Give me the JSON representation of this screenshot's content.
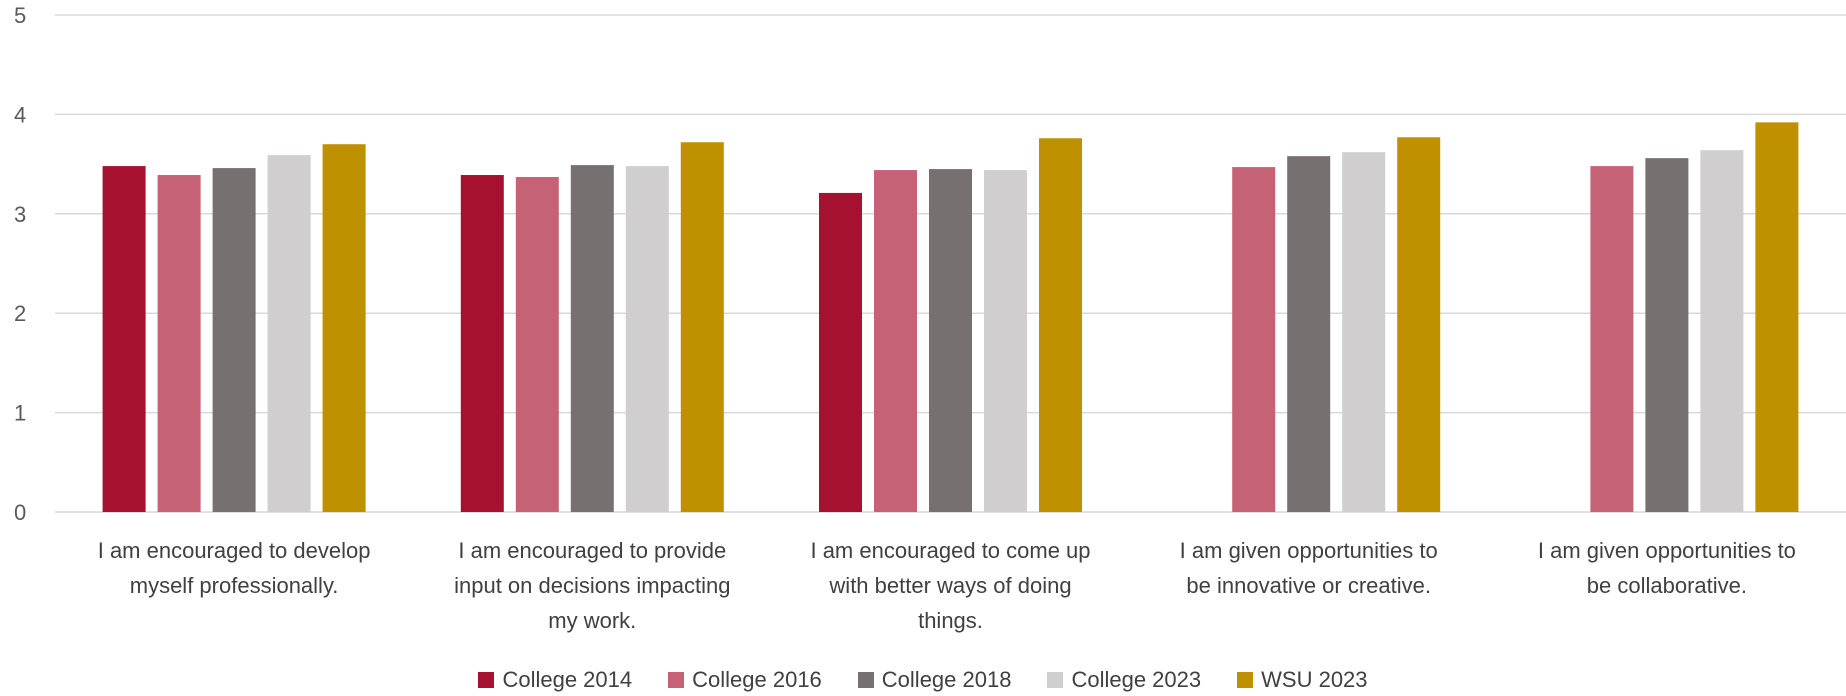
{
  "chart_data": {
    "type": "bar",
    "title": "",
    "xlabel": "",
    "ylabel": "",
    "ylim": [
      0,
      5
    ],
    "yticks": [
      0,
      1,
      2,
      3,
      4,
      5
    ],
    "grid": true,
    "legend_position": "bottom",
    "categories": [
      [
        "I am encouraged to develop",
        "myself professionally."
      ],
      [
        "I am encouraged to provide",
        "input on decisions impacting",
        "my work."
      ],
      [
        "I am encouraged to come up",
        "with better ways of doing",
        "things."
      ],
      [
        "I am given opportunities to",
        "be innovative or creative."
      ],
      [
        "I am given opportunities to",
        "be collaborative."
      ]
    ],
    "series": [
      {
        "name": "College 2014",
        "color": "#A6112F",
        "values": [
          3.48,
          3.39,
          3.21,
          null,
          null
        ]
      },
      {
        "name": "College 2016",
        "color": "#C66275",
        "values": [
          3.39,
          3.37,
          3.44,
          3.47,
          3.48
        ]
      },
      {
        "name": "College 2018",
        "color": "#767170",
        "values": [
          3.46,
          3.49,
          3.45,
          3.58,
          3.56
        ]
      },
      {
        "name": "College 2023",
        "color": "#D0CECE",
        "values": [
          3.59,
          3.48,
          3.44,
          3.62,
          3.64
        ]
      },
      {
        "name": "WSU 2023",
        "color": "#BF9000",
        "values": [
          3.7,
          3.72,
          3.76,
          3.77,
          3.92
        ]
      }
    ]
  }
}
